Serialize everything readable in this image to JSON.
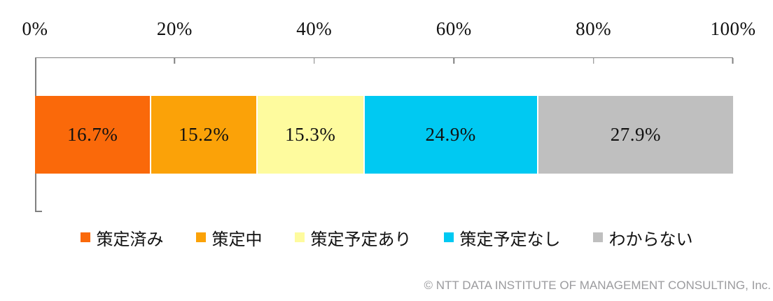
{
  "chart_data": {
    "type": "bar",
    "stacked": true,
    "orientation": "horizontal",
    "title": "",
    "x_axis": {
      "range": [
        0,
        100
      ],
      "unit": "%",
      "tick_labels": [
        "0%",
        "20%",
        "40%",
        "60%",
        "80%",
        "100%"
      ],
      "grid": false
    },
    "segments": [
      {
        "name": "策定済み",
        "value": 16.7,
        "display": "16.7%",
        "color": "#FA690A"
      },
      {
        "name": "策定中",
        "value": 15.2,
        "display": "15.2%",
        "color": "#FBA208"
      },
      {
        "name": "策定予定あり",
        "value": 15.3,
        "display": "15.3%",
        "color": "#FEFB9E"
      },
      {
        "name": "策定予定なし",
        "value": 24.9,
        "display": "24.9%",
        "color": "#00C9F2"
      },
      {
        "name": "わからない",
        "value": 27.9,
        "display": "27.9%",
        "color": "#BFBFBF"
      }
    ],
    "legend": {
      "position": "bottom"
    }
  },
  "footer": {
    "copyright": "© NTT DATA INSTITUTE OF MANAGEMENT CONSULTING, Inc."
  },
  "colors": {
    "axis_line": "#808080",
    "label_text": "#111111",
    "footer_text": "#9B9B9E",
    "background": "#FFFFFF"
  }
}
